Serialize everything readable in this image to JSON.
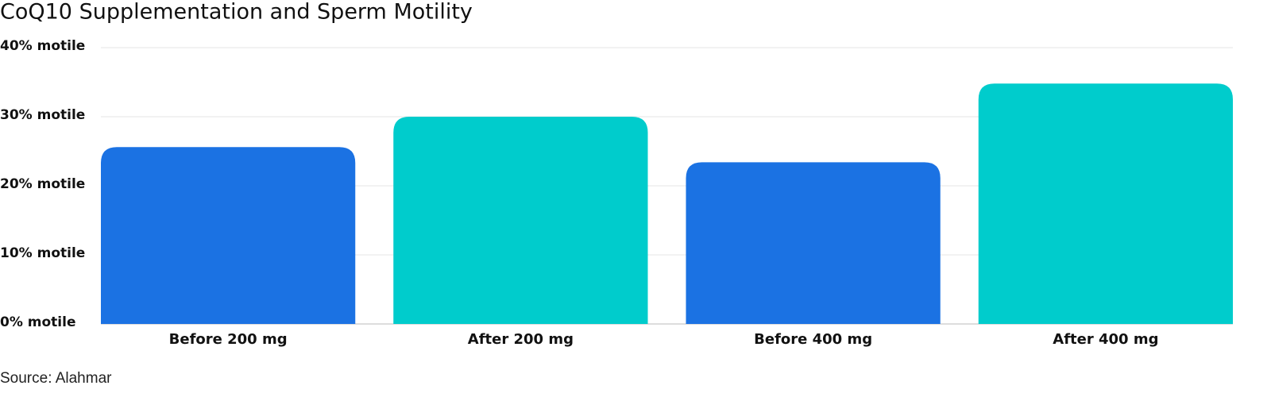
{
  "chart_data": {
    "type": "bar",
    "title": "CoQ10 Supplementation and Sperm Motility",
    "categories": [
      "Before 200 mg",
      "After 200 mg",
      "Before 400 mg",
      "After 400 mg"
    ],
    "values": [
      25.6,
      30.0,
      23.4,
      34.8
    ],
    "colors": [
      "#1b72e3",
      "#00cccc",
      "#1b72e3",
      "#00cccc"
    ],
    "ylim": [
      0,
      40
    ],
    "yticks": [
      {
        "value": 0,
        "label": "0% motile"
      },
      {
        "value": 10,
        "label": "10% motile"
      },
      {
        "value": 20,
        "label": "20% motile"
      },
      {
        "value": 30,
        "label": "30% motile"
      },
      {
        "value": 40,
        "label": "40% motile"
      }
    ],
    "grid": true,
    "source": "Source: Alahmar"
  }
}
